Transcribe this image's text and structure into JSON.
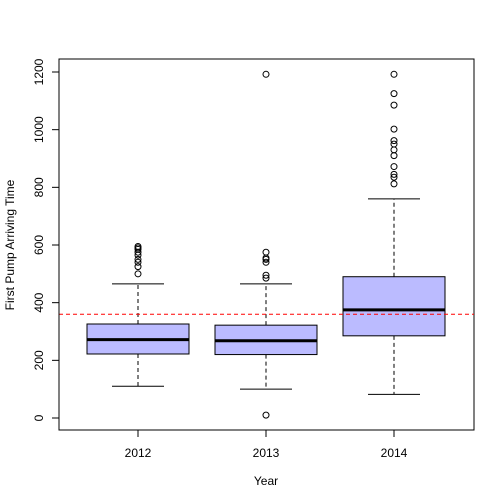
{
  "chart_data": {
    "type": "boxplot",
    "title": "",
    "xlabel": "Year",
    "ylabel": "First Pump Arriving Time",
    "ylim": [
      0,
      1200
    ],
    "yticks": [
      0,
      200,
      400,
      600,
      800,
      1000,
      1200
    ],
    "categories": [
      "2012",
      "2013",
      "2014"
    ],
    "boxes": [
      {
        "category": "2012",
        "whisker_low": 110,
        "q1": 222,
        "median": 272,
        "q3": 326,
        "whisker_high": 465,
        "outliers": [
          500,
          525,
          540,
          550,
          565,
          575,
          585,
          590,
          595
        ]
      },
      {
        "category": "2013",
        "whisker_low": 100,
        "q1": 220,
        "median": 268,
        "q3": 322,
        "whisker_high": 465,
        "outliers": [
          10,
          485,
          495,
          540,
          550,
          555,
          575,
          1192
        ]
      },
      {
        "category": "2014",
        "whisker_low": 82,
        "q1": 285,
        "median": 375,
        "q3": 490,
        "whisker_high": 760,
        "outliers": [
          812,
          835,
          845,
          872,
          910,
          930,
          950,
          962,
          1002,
          1085,
          1125,
          1192
        ]
      }
    ],
    "reference_line": {
      "value": 360,
      "color": "#ff0000",
      "style": "dashed"
    },
    "box_fill": "#bbbbff",
    "grid": false,
    "legend": "none"
  }
}
